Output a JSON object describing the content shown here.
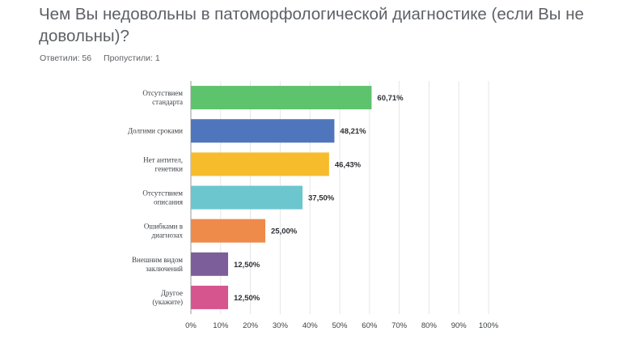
{
  "question": {
    "title": "Чем Вы недовольны в патоморфологической диагностике (если Вы не довольны)?"
  },
  "stats": {
    "answered": "Ответили: 56",
    "skipped": "Пропустили: 1"
  },
  "chart_data": {
    "type": "bar",
    "orientation": "horizontal",
    "categories": [
      [
        "Отсутствием",
        "стандарта"
      ],
      [
        "Долгими сроками"
      ],
      [
        "Нет антител,",
        "генетики"
      ],
      [
        "Отсутствием",
        "описания"
      ],
      [
        "Ошибками в",
        "диагнозах"
      ],
      [
        "Внешним видом",
        "заключений"
      ],
      [
        "Другое",
        "(укажите)"
      ]
    ],
    "values": [
      60.71,
      48.21,
      46.43,
      37.5,
      25.0,
      12.5,
      12.5
    ],
    "value_labels": [
      "60,71%",
      "48,21%",
      "46,43%",
      "37,50%",
      "25,00%",
      "12,50%",
      "12,50%"
    ],
    "colors": [
      "#5dc36d",
      "#4f76bd",
      "#f6bc2c",
      "#6bc6ce",
      "#ee8a4a",
      "#7c5e9a",
      "#d6558e"
    ],
    "xlim": [
      0,
      100
    ],
    "x_ticks": [
      0,
      10,
      20,
      30,
      40,
      50,
      60,
      70,
      80,
      90,
      100
    ],
    "x_tick_labels": [
      "0%",
      "10%",
      "20%",
      "30%",
      "40%",
      "50%",
      "60%",
      "70%",
      "80%",
      "90%",
      "100%"
    ],
    "grid": true,
    "title": "",
    "xlabel": "",
    "ylabel": ""
  }
}
